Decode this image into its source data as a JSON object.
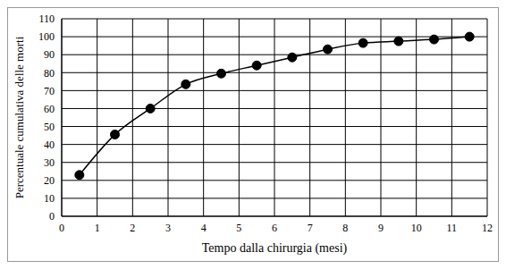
{
  "chart_data": {
    "type": "line",
    "x_label": "Tempo dalla chirurgia (mesi)",
    "y_label": "Percentuale cumulativa delle morti",
    "x": [
      0.5,
      1.5,
      2.5,
      3.5,
      4.5,
      5.5,
      6.5,
      7.5,
      8.5,
      9.5,
      10.5,
      11.5
    ],
    "values": [
      23,
      45.5,
      60,
      73.5,
      79.5,
      84,
      88.5,
      93,
      96.5,
      97.5,
      98.5,
      100
    ],
    "color": "#000000",
    "marker": "circle",
    "line_style": "solid",
    "xlim": [
      0,
      12
    ],
    "xticks": [
      0,
      1,
      2,
      3,
      4,
      5,
      6,
      7,
      8,
      9,
      10,
      11,
      12
    ],
    "ylim": [
      0,
      110
    ],
    "yticks": [
      0,
      10,
      20,
      30,
      40,
      50,
      60,
      70,
      80,
      90,
      100,
      110
    ],
    "grid": true
  }
}
